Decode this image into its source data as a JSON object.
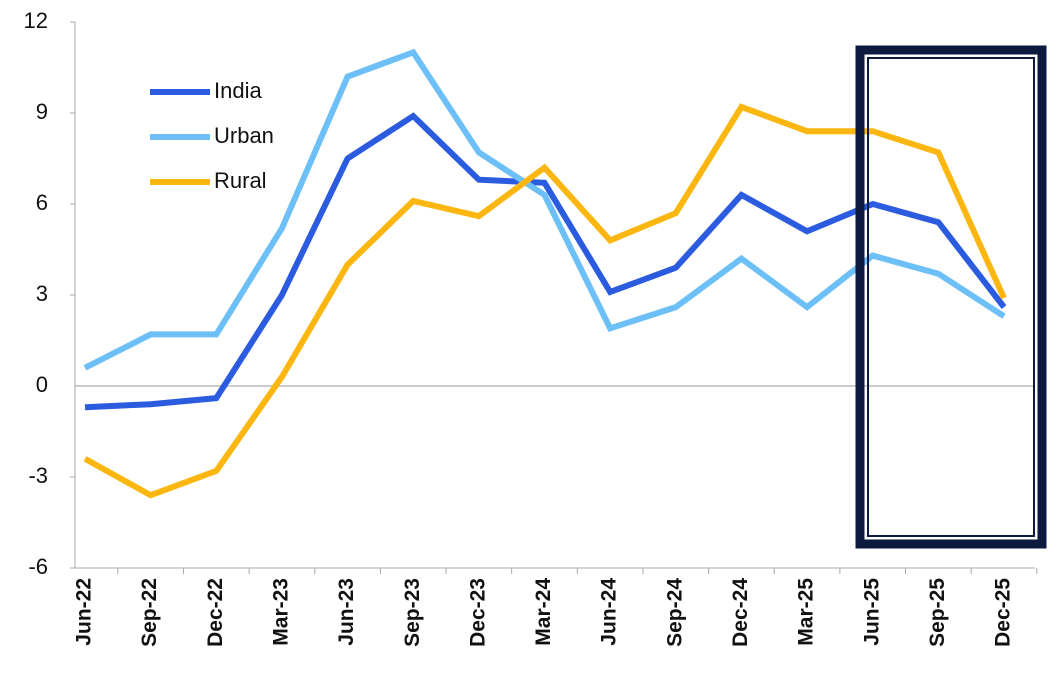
{
  "chart_data": {
    "type": "line",
    "categories": [
      "Jun-22",
      "Sep-22",
      "Dec-22",
      "Mar-23",
      "Jun-23",
      "Sep-23",
      "Dec-23",
      "Mar-24",
      "Jun-24",
      "Sep-24",
      "Dec-24",
      "Mar-25",
      "Jun-25",
      "Sep-25",
      "Dec-25"
    ],
    "series": [
      {
        "name": "India",
        "color": "#2b5ce0",
        "values": [
          -0.7,
          -0.6,
          -0.4,
          3.0,
          7.5,
          8.9,
          6.8,
          6.7,
          3.1,
          3.9,
          6.3,
          5.1,
          6.0,
          5.4,
          2.6
        ]
      },
      {
        "name": "Urban",
        "color": "#6cc0f7",
        "values": [
          0.6,
          1.7,
          1.7,
          5.2,
          10.2,
          11.0,
          7.7,
          6.3,
          1.9,
          2.6,
          4.2,
          2.6,
          4.3,
          3.7,
          2.3
        ]
      },
      {
        "name": "Rural",
        "color": "#fbb710",
        "values": [
          -2.4,
          -3.6,
          -2.8,
          0.3,
          4.0,
          6.1,
          5.6,
          7.2,
          4.8,
          5.7,
          9.2,
          8.4,
          8.4,
          7.7,
          2.9
        ]
      }
    ],
    "ylim": [
      -6,
      12
    ],
    "yticks": [
      -6,
      -3,
      0,
      3,
      6,
      9,
      12
    ]
  }
}
